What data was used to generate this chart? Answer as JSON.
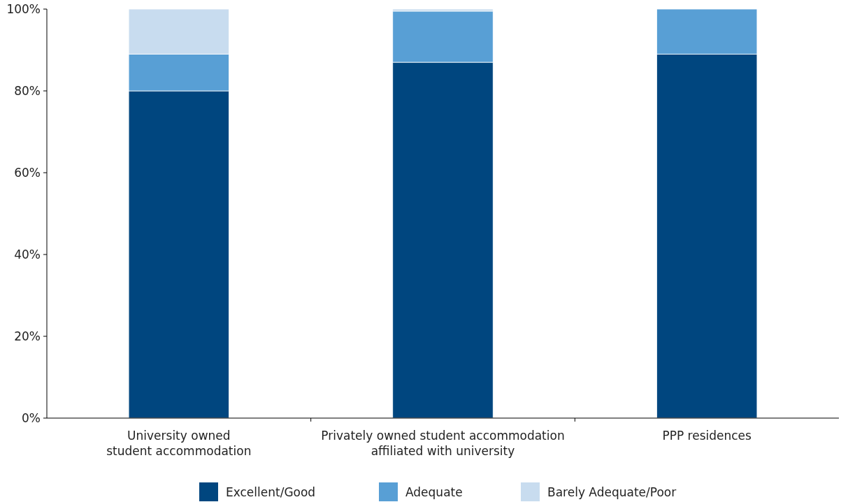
{
  "chart_data": {
    "type": "bar",
    "stacked": true,
    "categories": [
      "University owned\nstudent accommodation",
      "Privately owned student accommodation\naffiliated with university",
      "PPP residences"
    ],
    "series": [
      {
        "name": "Excellent/Good",
        "color": "#00467f",
        "values": [
          80,
          87,
          89
        ]
      },
      {
        "name": "Adequate",
        "color": "#589fd5",
        "values": [
          9,
          12.5,
          11
        ]
      },
      {
        "name": "Barely Adequate/Poor",
        "color": "#c8dcef",
        "values": [
          11,
          0.5,
          0
        ]
      }
    ],
    "ylim": [
      0,
      100
    ],
    "yticks": [
      {
        "value": 0,
        "label": "0%"
      },
      {
        "value": 20,
        "label": "20%"
      },
      {
        "value": 40,
        "label": "40%"
      },
      {
        "value": 60,
        "label": "60%"
      },
      {
        "value": 80,
        "label": "80%"
      },
      {
        "value": 100,
        "label": "100%"
      }
    ],
    "grid": false,
    "legend": "bottom"
  }
}
